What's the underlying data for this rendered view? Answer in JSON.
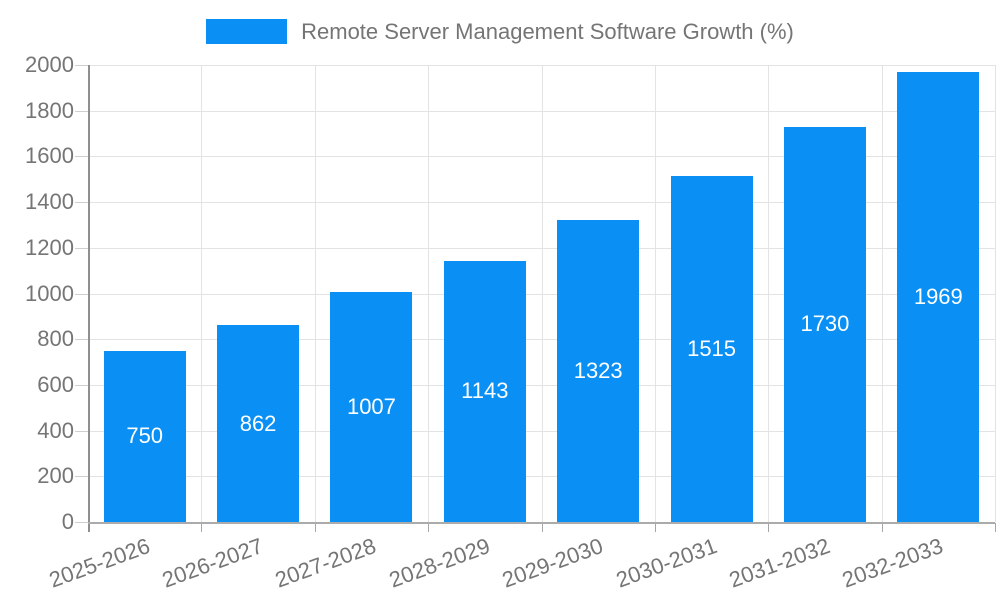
{
  "legend": {
    "label": "Remote Server Management Software Growth (%)"
  },
  "colors": {
    "bar": "#0a90f5",
    "axis_text": "#757575",
    "gridline": "#e3e3e3",
    "baseline": "#ababab",
    "yaxis_line": "#8f8f8f",
    "value_label": "#ffffff",
    "background": "#ffffff"
  },
  "chart_data": {
    "type": "bar",
    "title": "Remote Server Management Software Growth (%)",
    "categories": [
      "2025-2026",
      "2026-2027",
      "2027-2028",
      "2028-2029",
      "2029-2030",
      "2030-2031",
      "2031-2032",
      "2032-2033"
    ],
    "values": [
      750,
      862,
      1007,
      1143,
      1323,
      1515,
      1730,
      1969
    ],
    "xlabel": "",
    "ylabel": "",
    "ylim": [
      0,
      2000
    ],
    "ytick_step": 200,
    "yticks": [
      0,
      200,
      400,
      600,
      800,
      1000,
      1200,
      1400,
      1600,
      1800,
      2000
    ],
    "grid": true,
    "legend_position": "top-center",
    "bar_color": "#0a90f5",
    "value_label_position": "inside-center",
    "xtick_rotation_deg": -20
  }
}
